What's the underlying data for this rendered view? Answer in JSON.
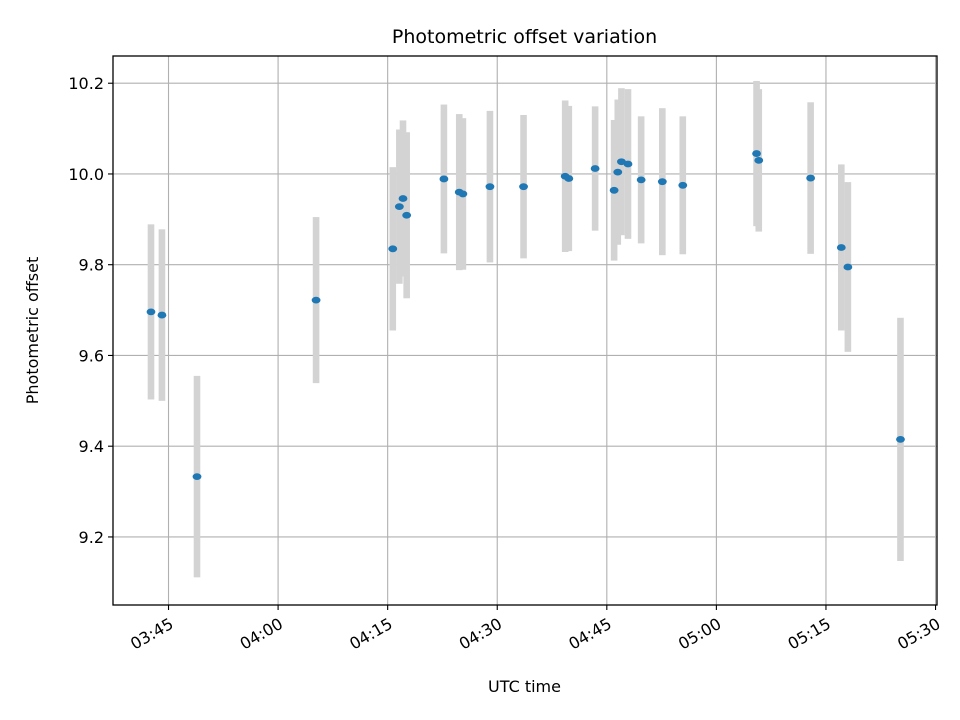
{
  "chart_data": {
    "type": "scatter",
    "title": "Photometric offset variation",
    "xlabel": "UTC time",
    "ylabel": "Photometric offset",
    "x_ticks": [
      "03:45",
      "04:00",
      "04:15",
      "04:30",
      "04:45",
      "05:00",
      "05:15",
      "05:30"
    ],
    "y_ticks": [
      "9.2",
      "9.4",
      "9.6",
      "9.8",
      "10.0",
      "10.2"
    ],
    "xlim": [
      "03:37.4",
      "05:30.2"
    ],
    "ylim": [
      9.05,
      10.26
    ],
    "grid": true,
    "point_color": "#1f77b4",
    "errorbar_color": "#d3d3d3",
    "points": [
      {
        "x": "03:42.6",
        "y": 9.696,
        "err": 0.193
      },
      {
        "x": "03:44.1",
        "y": 9.689,
        "err": 0.189
      },
      {
        "x": "03:48.9",
        "y": 9.333,
        "err": 0.222
      },
      {
        "x": "04:05.2",
        "y": 9.722,
        "err": 0.183
      },
      {
        "x": "04:15.7",
        "y": 9.835,
        "err": 0.18
      },
      {
        "x": "04:16.6",
        "y": 9.928,
        "err": 0.17
      },
      {
        "x": "04:17.1",
        "y": 9.946,
        "err": 0.172
      },
      {
        "x": "04:17.6",
        "y": 9.909,
        "err": 0.183
      },
      {
        "x": "04:22.7",
        "y": 9.989,
        "err": 0.164
      },
      {
        "x": "04:24.8",
        "y": 9.96,
        "err": 0.172
      },
      {
        "x": "04:25.3",
        "y": 9.956,
        "err": 0.167
      },
      {
        "x": "04:29.0",
        "y": 9.972,
        "err": 0.167
      },
      {
        "x": "04:33.6",
        "y": 9.972,
        "err": 0.158
      },
      {
        "x": "04:39.3",
        "y": 9.995,
        "err": 0.167
      },
      {
        "x": "04:39.8",
        "y": 9.99,
        "err": 0.16
      },
      {
        "x": "04:43.4",
        "y": 10.012,
        "err": 0.137
      },
      {
        "x": "04:46.0",
        "y": 9.964,
        "err": 0.155
      },
      {
        "x": "04:46.5",
        "y": 10.004,
        "err": 0.16
      },
      {
        "x": "04:47.0",
        "y": 10.027,
        "err": 0.162
      },
      {
        "x": "04:47.9",
        "y": 10.022,
        "err": 0.165
      },
      {
        "x": "04:49.7",
        "y": 9.987,
        "err": 0.14
      },
      {
        "x": "04:52.6",
        "y": 9.983,
        "err": 0.162
      },
      {
        "x": "04:55.4",
        "y": 9.975,
        "err": 0.152
      },
      {
        "x": "05:05.5",
        "y": 10.045,
        "err": 0.16
      },
      {
        "x": "05:05.8",
        "y": 10.03,
        "err": 0.157
      },
      {
        "x": "05:12.9",
        "y": 9.991,
        "err": 0.167
      },
      {
        "x": "05:17.1",
        "y": 9.838,
        "err": 0.183
      },
      {
        "x": "05:18.0",
        "y": 9.795,
        "err": 0.187
      },
      {
        "x": "05:25.2",
        "y": 9.415,
        "err": 0.268
      }
    ]
  }
}
